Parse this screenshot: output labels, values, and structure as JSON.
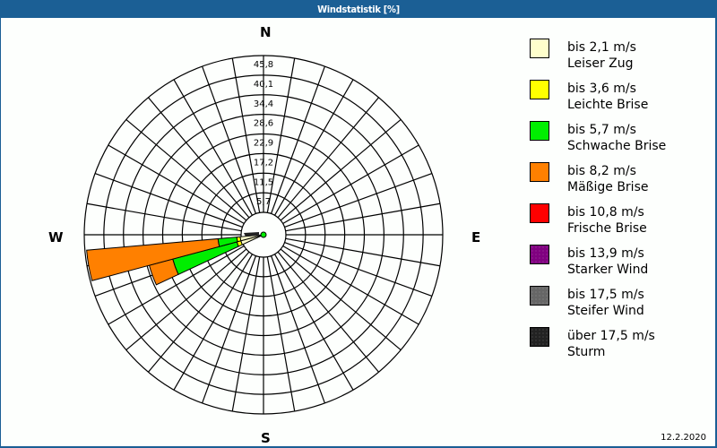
{
  "window": {
    "title": "Windstatistik [%]"
  },
  "compass": {
    "north": "N",
    "east": "E",
    "south": "S",
    "west": "W"
  },
  "legend": [
    {
      "range": "bis 2,1 m/s",
      "name": "Leiser Zug",
      "color": "#ffffcc"
    },
    {
      "range": "bis 3,6 m/s",
      "name": "Leichte Brise",
      "color": "#ffff00"
    },
    {
      "range": "bis 5,7 m/s",
      "name": "Schwache Brise",
      "color": "#00ee00"
    },
    {
      "range": "bis 8,2 m/s",
      "name": "Mäßige Brise",
      "color": "#ff8000"
    },
    {
      "range": "bis 10,8 m/s",
      "name": "Frische Brise",
      "color": "#ff0000"
    },
    {
      "range": "bis 13,9 m/s",
      "name": "Starker Wind",
      "color": "#800080"
    },
    {
      "range": "bis 17,5 m/s",
      "name": "Steifer Wind",
      "color": "#666666"
    },
    {
      "range": "über 17,5 m/s",
      "name": "Sturm",
      "color": "#222222"
    }
  ],
  "footer": {
    "date": "12.2.2020"
  },
  "chart_data": {
    "type": "wind-rose",
    "title": "Windstatistik [%]",
    "unit": "%",
    "radial_ticks": [
      "5,7",
      "11,5",
      "17,2",
      "22,9",
      "28,6",
      "34,4",
      "40,1",
      "45,8"
    ],
    "radial_max": 45.8,
    "ring_step": 5.725,
    "sector_width_deg": 10,
    "spokes_every_deg": 10,
    "legend": [
      "bis 2,1 m/s Leiser Zug",
      "bis 3,6 m/s Leichte Brise",
      "bis 5,7 m/s Schwache Brise",
      "bis 8,2 m/s Mäßige Brise",
      "bis 10,8 m/s Frische Brise",
      "bis 13,9 m/s Starker Wind",
      "bis 17,5 m/s Steifer Wind",
      "über 17,5 m/s Sturm"
    ],
    "series_colors": [
      "#ffffcc",
      "#ffff00",
      "#00ee00",
      "#ff8000",
      "#ff0000",
      "#800080",
      "#666666",
      "#222222"
    ],
    "sectors": [
      {
        "direction_deg": 250,
        "values": [
          0.3,
          1.2,
          19.4,
          7.1,
          0,
          0,
          0,
          0
        ],
        "total": 28.0
      },
      {
        "direction_deg": 260,
        "values": [
          0.3,
          1.0,
          5.5,
          38.5,
          0,
          0,
          0,
          0
        ],
        "total": 45.3
      }
    ],
    "legend_position": "right",
    "grid": true
  }
}
